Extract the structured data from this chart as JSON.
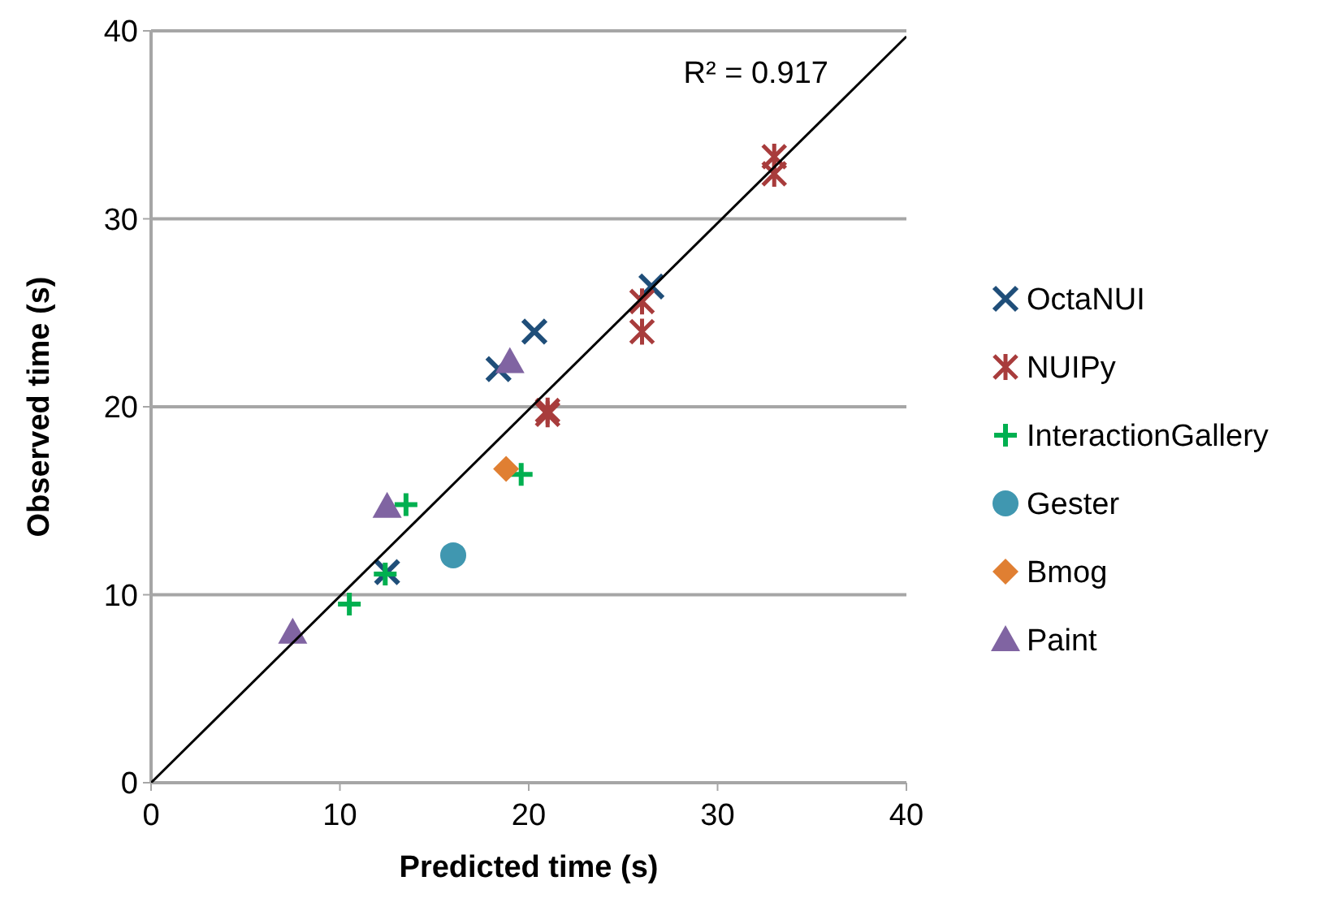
{
  "chart_data": {
    "type": "scatter",
    "xlabel": "Predicted time (s)",
    "ylabel": "Observed time (s)",
    "xlim": [
      0,
      40
    ],
    "ylim": [
      0,
      40
    ],
    "xticks": [
      0,
      10,
      20,
      30,
      40
    ],
    "yticks": [
      0,
      10,
      20,
      30,
      40
    ],
    "grid": "y",
    "legend": "right",
    "annotations": [
      "R² = 0.917"
    ],
    "series": [
      {
        "name": "OctaNUI",
        "color": "#1f4e79",
        "marker": "cross",
        "x": [
          18.4,
          20.3,
          26.5,
          12.5
        ],
        "values": [
          22.0,
          24.0,
          26.4,
          11.2
        ]
      },
      {
        "name": "NUIPy",
        "color": "#a83c3c",
        "x": [
          33,
          33,
          26,
          26,
          21,
          21
        ],
        "values": [
          33.3,
          32.4,
          25.6,
          24.0,
          19.8,
          19.6
        ]
      },
      {
        "name": "InteractionGallery",
        "color": "#00b050",
        "marker": "plus",
        "x": [
          13.5,
          10.5,
          12.4,
          19.6
        ],
        "values": [
          14.8,
          9.5,
          11.1,
          16.4
        ]
      },
      {
        "name": "Gester",
        "color": "#4097b0",
        "marker": "circle",
        "x": [
          16
        ],
        "values": [
          12.1
        ]
      },
      {
        "name": "Bmog",
        "color": "#e07f32",
        "marker": "diamond",
        "x": [
          18.8
        ],
        "values": [
          16.7
        ]
      },
      {
        "name": "Paint",
        "color": "#8064a2",
        "marker": "triangle",
        "x": [
          7.5,
          12.5,
          19
        ],
        "values": [
          8.0,
          14.7,
          22.4
        ]
      },
      {
        "type": "line",
        "color": "#000000",
        "marker": "none",
        "x": [
          0,
          40
        ],
        "values": [
          0,
          39.7
        ]
      }
    ]
  }
}
